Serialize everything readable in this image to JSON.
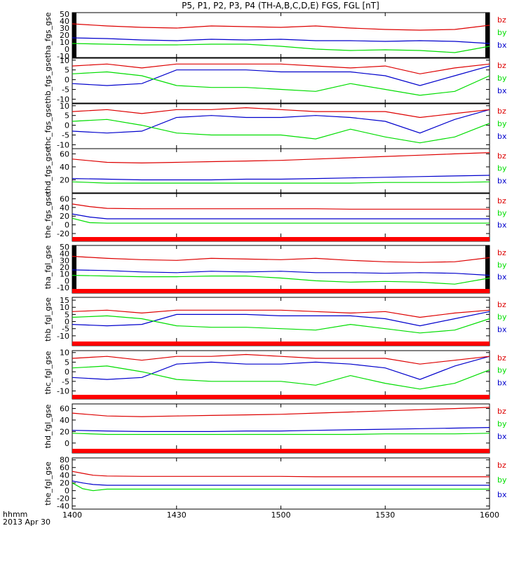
{
  "chart_data": {
    "type": "line",
    "title": "P5, P1, P2, P3, P4 (TH-A,B,C,D,E) FGS, FGL [nT]",
    "x_tick_labels": [
      "1400",
      "1430",
      "1500",
      "1530",
      "1600"
    ],
    "x_label_lines": [
      "hhmm",
      "2013 Apr 30"
    ],
    "xlim": [
      0,
      120
    ],
    "series_colors": {
      "bx": "#0000cc",
      "by": "#00dd00",
      "bz": "#dd0000"
    },
    "panels": [
      {
        "ylabel": "tha_fgs_gse",
        "ylim": [
          -12,
          52
        ],
        "ytick_labels": [
          "50",
          "40",
          "30",
          "20",
          "10",
          "0",
          "-10"
        ],
        "ytick_values": [
          50,
          40,
          30,
          20,
          10,
          0,
          -10
        ],
        "legend": [
          "bz",
          "by",
          "bx"
        ],
        "red_bar": false,
        "edge_black": true,
        "x": [
          0,
          10,
          20,
          30,
          40,
          50,
          60,
          70,
          80,
          90,
          100,
          110,
          120
        ],
        "series": [
          {
            "name": "bx",
            "values": [
              16,
              15,
              13,
              12,
              14,
              13,
              14,
              12,
              12,
              11,
              12,
              11,
              8
            ]
          },
          {
            "name": "by",
            "values": [
              8,
              7,
              6,
              6,
              7,
              7,
              4,
              0,
              -2,
              -1,
              -2,
              -5,
              4
            ]
          },
          {
            "name": "bz",
            "values": [
              36,
              33,
              31,
              30,
              33,
              32,
              31,
              33,
              30,
              28,
              27,
              28,
              34
            ]
          }
        ]
      },
      {
        "ylabel": "thb_fgs_gse",
        "ylim": [
          -12,
          11
        ],
        "ytick_labels": [
          "10",
          "5",
          "0",
          "-5",
          "-10"
        ],
        "ytick_values": [
          10,
          5,
          0,
          -5,
          -10
        ],
        "legend": [
          "bz",
          "by",
          "bx"
        ],
        "red_bar": false,
        "edge_black": false,
        "x": [
          0,
          10,
          20,
          30,
          40,
          50,
          60,
          70,
          80,
          90,
          100,
          110,
          120
        ],
        "series": [
          {
            "name": "bx",
            "values": [
              -2,
              -3,
              -2,
              5,
              5,
              5,
              4,
              4,
              4,
              2,
              -3,
              2,
              7
            ]
          },
          {
            "name": "by",
            "values": [
              3,
              4,
              2,
              -3,
              -4,
              -4,
              -5,
              -6,
              -2,
              -5,
              -8,
              -6,
              2
            ]
          },
          {
            "name": "bz",
            "values": [
              7,
              8,
              6,
              8,
              8,
              8,
              8,
              7,
              6,
              7,
              3,
              6,
              8
            ]
          }
        ]
      },
      {
        "ylabel": "thc_fgs_gse",
        "ylim": [
          -12,
          11
        ],
        "ytick_labels": [
          "10",
          "5",
          "0",
          "-5",
          "-10"
        ],
        "ytick_values": [
          10,
          5,
          0,
          -5,
          -10
        ],
        "legend": [
          "bz",
          "by",
          "bx"
        ],
        "red_bar": false,
        "edge_black": false,
        "x": [
          0,
          10,
          20,
          30,
          40,
          50,
          60,
          70,
          80,
          90,
          100,
          110,
          120
        ],
        "series": [
          {
            "name": "bx",
            "values": [
              -3,
              -4,
              -3,
              4,
              5,
              4,
              4,
              5,
              4,
              2,
              -4,
              3,
              8
            ]
          },
          {
            "name": "by",
            "values": [
              2,
              3,
              0,
              -4,
              -5,
              -5,
              -5,
              -7,
              -2,
              -6,
              -9,
              -6,
              1
            ]
          },
          {
            "name": "bz",
            "values": [
              7,
              8,
              6,
              8,
              8,
              9,
              8,
              7,
              7,
              7,
              4,
              6,
              8
            ]
          }
        ]
      },
      {
        "ylabel": "thd_fgs_gse",
        "ylim": [
          0,
          68
        ],
        "ytick_labels": [
          "60",
          "40",
          "20"
        ],
        "ytick_values": [
          60,
          40,
          20
        ],
        "legend": [
          "bz",
          "by",
          "bx"
        ],
        "red_bar": false,
        "edge_black": false,
        "x": [
          0,
          10,
          20,
          30,
          40,
          50,
          60,
          70,
          80,
          90,
          100,
          110,
          120
        ],
        "series": [
          {
            "name": "bx",
            "values": [
              22,
              21,
              20,
              20,
              20,
              21,
              21,
              22,
              23,
              24,
              25,
              26,
              27
            ]
          },
          {
            "name": "by",
            "values": [
              17,
              15,
              15,
              15,
              15,
              15,
              15,
              15,
              15,
              16,
              16,
              16,
              17
            ]
          },
          {
            "name": "bz",
            "values": [
              52,
              47,
              46,
              47,
              48,
              49,
              50,
              52,
              54,
              56,
              58,
              60,
              62
            ]
          }
        ]
      },
      {
        "ylabel": "the_fgs_gse",
        "ylim": [
          -28,
          72
        ],
        "ytick_labels": [
          "60",
          "40",
          "20",
          "0",
          "-20"
        ],
        "ytick_values": [
          60,
          40,
          20,
          0,
          -20
        ],
        "legend": [
          "bz",
          "by",
          "bx"
        ],
        "red_bar": true,
        "edge_black": false,
        "x": [
          0,
          5,
          10,
          20,
          30,
          40,
          50,
          60,
          70,
          80,
          90,
          100,
          110,
          120
        ],
        "series": [
          {
            "name": "bx",
            "values": [
              25,
              18,
              14,
              14,
              14,
              14,
              14,
              14,
              14,
              14,
              14,
              14,
              14,
              14
            ]
          },
          {
            "name": "by",
            "values": [
              15,
              5,
              4,
              4,
              4,
              4,
              4,
              4,
              4,
              4,
              4,
              4,
              4,
              4
            ]
          },
          {
            "name": "bz",
            "values": [
              48,
              42,
              38,
              37,
              37,
              37,
              37,
              37,
              37,
              36,
              36,
              36,
              36,
              36
            ]
          }
        ]
      },
      {
        "ylabel": "tha_fgl_gse",
        "ylim": [
          -12,
          52
        ],
        "ytick_labels": [
          "50",
          "40",
          "30",
          "20",
          "10",
          "0",
          "-10"
        ],
        "ytick_values": [
          50,
          40,
          30,
          20,
          10,
          0,
          -10
        ],
        "legend": [
          "bz",
          "by",
          "bx"
        ],
        "red_bar": true,
        "edge_black": true,
        "x": [
          0,
          10,
          20,
          30,
          40,
          50,
          60,
          70,
          80,
          90,
          100,
          110,
          120
        ],
        "series": [
          {
            "name": "bx",
            "values": [
              16,
              15,
              13,
              12,
              14,
              13,
              14,
              12,
              12,
              11,
              12,
              11,
              8
            ]
          },
          {
            "name": "by",
            "values": [
              8,
              7,
              6,
              6,
              7,
              7,
              4,
              0,
              -2,
              -1,
              -2,
              -5,
              4
            ]
          },
          {
            "name": "bz",
            "values": [
              36,
              33,
              31,
              30,
              33,
              32,
              31,
              33,
              30,
              28,
              27,
              28,
              34
            ]
          }
        ]
      },
      {
        "ylabel": "thb_fgl_gse",
        "ylim": [
          -14,
          17
        ],
        "ytick_labels": [
          "15",
          "10",
          "5",
          "0",
          "-5",
          "-10"
        ],
        "ytick_values": [
          15,
          10,
          5,
          0,
          -5,
          -10
        ],
        "legend": [
          "bz",
          "by",
          "bx"
        ],
        "red_bar": true,
        "edge_black": false,
        "x": [
          0,
          10,
          20,
          30,
          40,
          50,
          60,
          70,
          80,
          90,
          100,
          110,
          120
        ],
        "series": [
          {
            "name": "bx",
            "values": [
              -2,
              -3,
              -2,
              5,
              5,
              5,
              4,
              4,
              4,
              2,
              -3,
              2,
              7
            ]
          },
          {
            "name": "by",
            "values": [
              3,
              4,
              2,
              -3,
              -4,
              -4,
              -5,
              -6,
              -2,
              -5,
              -8,
              -6,
              2
            ]
          },
          {
            "name": "bz",
            "values": [
              7,
              8,
              6,
              8,
              8,
              8,
              8,
              7,
              6,
              7,
              3,
              6,
              8
            ]
          }
        ]
      },
      {
        "ylabel": "thc_fgl_gse",
        "ylim": [
          -12,
          11
        ],
        "ytick_labels": [
          "10",
          "5",
          "0",
          "-5",
          "-10"
        ],
        "ytick_values": [
          10,
          5,
          0,
          -5,
          -10
        ],
        "legend": [
          "bz",
          "by",
          "bx"
        ],
        "red_bar": true,
        "edge_black": false,
        "x": [
          0,
          10,
          20,
          30,
          40,
          50,
          60,
          70,
          80,
          90,
          100,
          110,
          120
        ],
        "series": [
          {
            "name": "bx",
            "values": [
              -3,
              -4,
              -3,
              4,
              5,
              4,
              4,
              5,
              4,
              2,
              -4,
              3,
              8
            ]
          },
          {
            "name": "by",
            "values": [
              2,
              3,
              0,
              -4,
              -5,
              -5,
              -5,
              -7,
              -2,
              -6,
              -9,
              -6,
              1
            ]
          },
          {
            "name": "bz",
            "values": [
              7,
              8,
              6,
              8,
              8,
              9,
              8,
              7,
              7,
              7,
              4,
              6,
              8
            ]
          }
        ]
      },
      {
        "ylabel": "thd_fgl_gse",
        "ylim": [
          -10,
          68
        ],
        "ytick_labels": [
          "60",
          "40",
          "20",
          "0"
        ],
        "ytick_values": [
          60,
          40,
          20,
          0
        ],
        "legend": [
          "bz",
          "by",
          "bx"
        ],
        "red_bar": true,
        "edge_black": false,
        "x": [
          0,
          10,
          20,
          30,
          40,
          50,
          60,
          70,
          80,
          90,
          100,
          110,
          120
        ],
        "series": [
          {
            "name": "bx",
            "values": [
              22,
              21,
              20,
              20,
              20,
              21,
              21,
              22,
              23,
              24,
              25,
              26,
              27
            ]
          },
          {
            "name": "by",
            "values": [
              17,
              15,
              15,
              15,
              15,
              15,
              15,
              15,
              15,
              16,
              16,
              16,
              17
            ]
          },
          {
            "name": "bz",
            "values": [
              52,
              47,
              46,
              47,
              48,
              49,
              50,
              52,
              54,
              56,
              58,
              60,
              62
            ]
          }
        ]
      },
      {
        "ylabel": "the_fgl_gse",
        "ylim": [
          -48,
          85
        ],
        "ytick_labels": [
          "80",
          "60",
          "40",
          "20",
          "0",
          "-20",
          "-40"
        ],
        "ytick_values": [
          80,
          60,
          40,
          20,
          0,
          -20,
          -40
        ],
        "legend": [
          "bz",
          "by",
          "bx"
        ],
        "red_bar": false,
        "edge_black": false,
        "x": [
          0,
          3,
          6,
          10,
          20,
          30,
          40,
          50,
          60,
          70,
          80,
          90,
          100,
          110,
          120
        ],
        "series": [
          {
            "name": "bx",
            "values": [
              25,
              20,
              16,
              14,
              14,
              14,
              14,
              14,
              14,
              14,
              14,
              14,
              14,
              14,
              14
            ]
          },
          {
            "name": "by",
            "values": [
              20,
              5,
              0,
              4,
              4,
              4,
              4,
              4,
              4,
              4,
              4,
              4,
              4,
              4,
              4
            ]
          },
          {
            "name": "bz",
            "values": [
              50,
              45,
              40,
              38,
              37,
              37,
              37,
              37,
              37,
              36,
              36,
              36,
              36,
              36,
              36
            ]
          }
        ]
      }
    ]
  }
}
